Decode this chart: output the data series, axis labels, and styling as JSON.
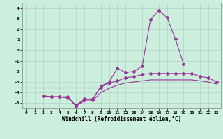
{
  "title": "",
  "xlabel": "Windchill (Refroidissement éolien,°C)",
  "background_color": "#cceedd",
  "line_color": "#993399",
  "ylim": [
    -5.5,
    4.5
  ],
  "xlim": [
    -0.5,
    23.5
  ],
  "yticks": [
    -5,
    -4,
    -3,
    -2,
    -1,
    0,
    1,
    2,
    3,
    4
  ],
  "xticks": [
    0,
    1,
    2,
    3,
    4,
    5,
    6,
    7,
    8,
    9,
    10,
    11,
    12,
    13,
    14,
    15,
    16,
    17,
    18,
    19,
    20,
    21,
    22,
    23
  ],
  "series": [
    [
      null,
      null,
      -4.3,
      -4.4,
      -4.4,
      -4.4,
      -5.3,
      -4.7,
      -4.7,
      -3.4,
      -3.0,
      -1.7,
      -2.1,
      -2.0,
      -1.5,
      2.9,
      3.8,
      3.1,
      1.1,
      -1.3,
      null,
      null,
      null,
      null
    ],
    [
      -3.5,
      -3.5,
      -3.5,
      -3.5,
      -3.5,
      -3.5,
      -3.5,
      -3.5,
      -3.5,
      -3.5,
      -3.5,
      -3.5,
      -3.5,
      -3.5,
      -3.5,
      -3.5,
      -3.5,
      -3.5,
      -3.5,
      -3.5,
      -3.5,
      -3.5,
      -3.5,
      -3.5
    ],
    [
      null,
      null,
      -4.3,
      -4.4,
      -4.4,
      -4.5,
      -5.2,
      -4.6,
      -4.6,
      -3.5,
      -3.1,
      -2.9,
      -2.6,
      -2.5,
      -2.3,
      -2.2,
      -2.2,
      -2.2,
      -2.2,
      -2.2,
      -2.2,
      -2.5,
      -2.6,
      -3.0
    ],
    [
      null,
      null,
      -4.3,
      -4.4,
      -4.4,
      -4.5,
      -5.2,
      -4.8,
      -4.8,
      -4.0,
      -3.6,
      -3.3,
      -3.1,
      -3.0,
      -2.9,
      -2.8,
      -2.8,
      -2.8,
      -2.8,
      -2.8,
      -2.8,
      -2.9,
      -3.0,
      -3.2
    ]
  ],
  "has_markers": [
    true,
    false,
    true,
    false
  ],
  "marker_style": "D",
  "marker_size": 2,
  "linewidth": 0.8,
  "grid_color": "#aaccbb",
  "xlabel_fontsize": 5.5,
  "tick_fontsize": 4.5
}
